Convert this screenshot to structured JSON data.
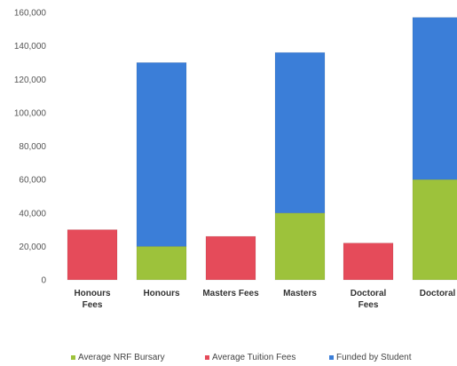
{
  "chart_data": {
    "type": "bar",
    "stacked": true,
    "title": "",
    "xlabel": "",
    "ylabel": "",
    "ylim": [
      0,
      160000
    ],
    "yticks": [
      0,
      20000,
      40000,
      60000,
      80000,
      100000,
      120000,
      140000,
      160000
    ],
    "ytick_labels": [
      "0",
      "20,000",
      "40,000",
      "60,000",
      "80,000",
      "100,000",
      "120,000",
      "140,000",
      "160,000"
    ],
    "grid": false,
    "legend_position": "bottom",
    "categories": [
      [
        "Honours",
        "Fees"
      ],
      [
        "Honours"
      ],
      [
        "Masters Fees"
      ],
      [
        "Masters"
      ],
      [
        "Doctoral",
        "Fees"
      ],
      [
        "Doctoral"
      ]
    ],
    "series": [
      {
        "name": "Average NRF Bursary",
        "color": "#9dc23b",
        "values": [
          0,
          20000,
          0,
          40000,
          0,
          60000
        ]
      },
      {
        "name": "Average Tuition Fees",
        "color": "#e54b5a",
        "values": [
          30000,
          0,
          26000,
          0,
          22000,
          0
        ]
      },
      {
        "name": "Funded by Student",
        "color": "#3b7ed8",
        "values": [
          0,
          110000,
          0,
          96000,
          0,
          97000
        ]
      }
    ]
  }
}
